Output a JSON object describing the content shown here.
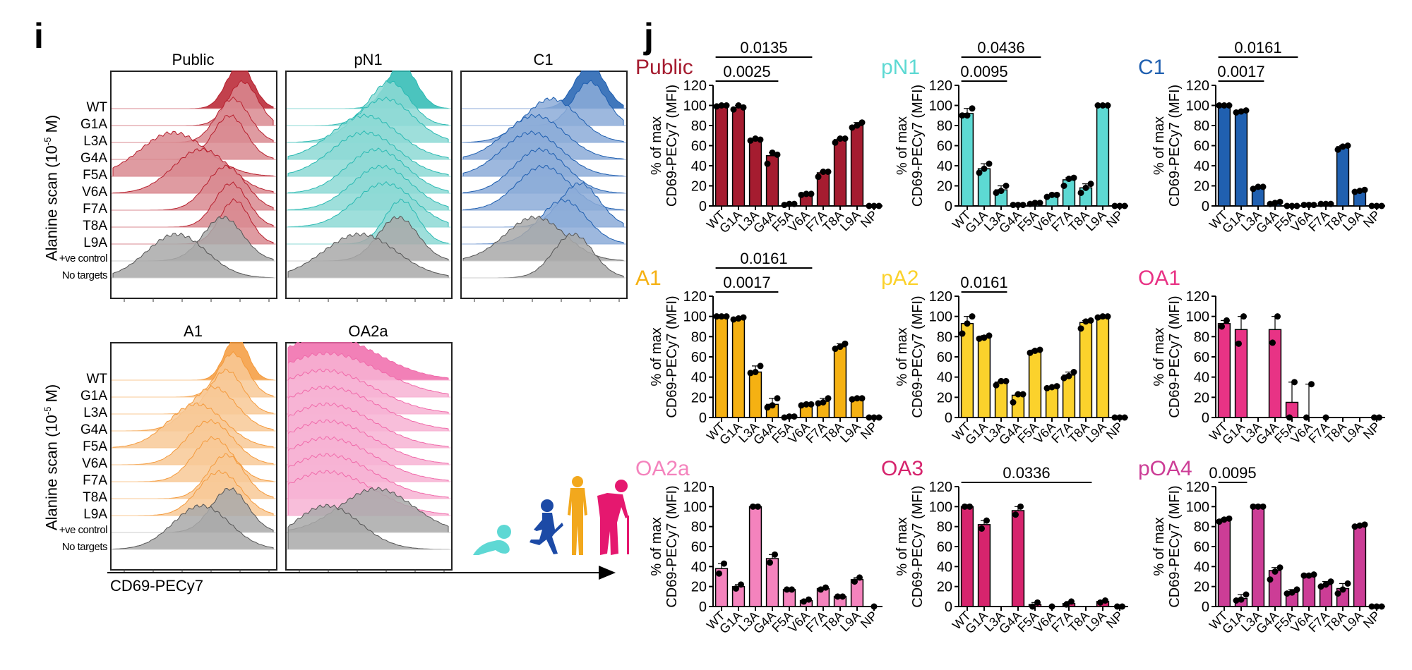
{
  "panel_i": {
    "letter": "i",
    "y_axis_label": "Alanine scan (10",
    "y_axis_label_sup": "-5",
    "y_axis_label_end": " M)",
    "x_axis_label": "CD69-PECy7",
    "row_labels": [
      "WT",
      "G1A",
      "L3A",
      "G4A",
      "F5A",
      "V6A",
      "F7A",
      "T8A",
      "L9A",
      "+ve control",
      "No targets"
    ],
    "panels": [
      {
        "title": "Public",
        "color": "#b7202e",
        "light": "#d98a90",
        "peaks": [
          0.78,
          0.8,
          0.74,
          0.72,
          0.38,
          0.55,
          0.7,
          0.73,
          0.75,
          0.68,
          0.4
        ],
        "widths": [
          0.08,
          0.09,
          0.1,
          0.1,
          0.2,
          0.17,
          0.12,
          0.1,
          0.09,
          0.12,
          0.18
        ]
      },
      {
        "title": "pN1",
        "color": "#2bbab3",
        "light": "#8dd9d5",
        "peaks": [
          0.7,
          0.63,
          0.6,
          0.48,
          0.48,
          0.55,
          0.58,
          0.6,
          0.7,
          0.68,
          0.45
        ],
        "widths": [
          0.09,
          0.12,
          0.17,
          0.2,
          0.2,
          0.18,
          0.18,
          0.18,
          0.1,
          0.12,
          0.22
        ]
      },
      {
        "title": "C1",
        "color": "#1f5fb0",
        "light": "#8cabd8",
        "peaks": [
          0.78,
          0.78,
          0.55,
          0.45,
          0.43,
          0.48,
          0.5,
          0.72,
          0.62,
          0.45,
          0.68
        ],
        "widths": [
          0.09,
          0.1,
          0.16,
          0.18,
          0.18,
          0.16,
          0.16,
          0.12,
          0.14,
          0.18,
          0.12
        ]
      },
      {
        "title": "A1",
        "color": "#f49a3c",
        "light": "#f8c996",
        "peaks": [
          0.76,
          0.74,
          0.7,
          0.62,
          0.52,
          0.6,
          0.62,
          0.7,
          0.66,
          0.72,
          0.55
        ],
        "widths": [
          0.07,
          0.09,
          0.1,
          0.14,
          0.17,
          0.14,
          0.12,
          0.11,
          0.13,
          0.11,
          0.17
        ]
      },
      {
        "title": "OA2a",
        "color": "#f06aaa",
        "light": "#f7b3d3",
        "peaks": [
          0.25,
          0.25,
          0.23,
          0.25,
          0.25,
          0.25,
          0.25,
          0.25,
          0.25,
          0.55,
          0.25
        ],
        "widths": [
          0.3,
          0.32,
          0.3,
          0.3,
          0.28,
          0.28,
          0.28,
          0.28,
          0.28,
          0.22,
          0.2
        ]
      }
    ]
  },
  "panel_j": {
    "letter": "j",
    "ylabel_line1": "% of max",
    "ylabel_line2": "CD69-PECy7 (MFI)"
  },
  "chart_data": [
    {
      "type": "bar",
      "title": "Public",
      "color": "#a51c30",
      "categories": [
        "WT",
        "G1A",
        "L3A",
        "G4A",
        "F5A",
        "V6A",
        "F7A",
        "T8A",
        "L9A",
        "NP"
      ],
      "values": [
        100,
        98,
        66,
        50,
        2,
        12,
        33,
        66,
        80,
        0
      ],
      "points": [
        [
          99,
          100,
          100
        ],
        [
          96,
          100,
          98
        ],
        [
          65,
          67,
          66
        ],
        [
          42,
          53,
          51
        ],
        [
          1,
          2,
          2
        ],
        [
          11,
          12,
          12
        ],
        [
          29,
          34,
          34
        ],
        [
          63,
          67,
          67
        ],
        [
          78,
          80,
          83
        ],
        [
          0,
          0,
          0
        ]
      ],
      "ylabel": "% of max CD69-PECy7 (MFI)",
      "ylim": [
        0,
        120
      ],
      "yticks": [
        0,
        20,
        40,
        60,
        80,
        100,
        120
      ],
      "significance": [
        {
          "label": "0.0135",
          "from": "WT",
          "to": "V6A"
        },
        {
          "label": "0.0025",
          "from": "WT",
          "to": "G4A"
        }
      ]
    },
    {
      "type": "bar",
      "title": "pN1",
      "color": "#5dd9d3",
      "categories": [
        "WT",
        "G1A",
        "L3A",
        "G4A",
        "F5A",
        "V6A",
        "F7A",
        "T8A",
        "L9A",
        "NP"
      ],
      "values": [
        92,
        37,
        16,
        1,
        3,
        10,
        26,
        18,
        100,
        0
      ],
      "points": [
        [
          90,
          90,
          97
        ],
        [
          33,
          37,
          42
        ],
        [
          13,
          15,
          20
        ],
        [
          1,
          1,
          1
        ],
        [
          2,
          3,
          3
        ],
        [
          9,
          11,
          11
        ],
        [
          20,
          27,
          28
        ],
        [
          13,
          18,
          22
        ],
        [
          100,
          100,
          100
        ],
        [
          0,
          0,
          0
        ]
      ],
      "ylabel": "% of max CD69-PECy7 (MFI)",
      "ylim": [
        0,
        120
      ],
      "yticks": [
        0,
        20,
        40,
        60,
        80,
        100,
        120
      ],
      "significance": [
        {
          "label": "0.0436",
          "from": "WT",
          "to": "F5A"
        },
        {
          "label": "0.0095",
          "from": "WT",
          "to": "L3A"
        }
      ]
    },
    {
      "type": "bar",
      "title": "C1",
      "color": "#2060b0",
      "categories": [
        "WT",
        "G1A",
        "L3A",
        "G4A",
        "F5A",
        "V6A",
        "F7A",
        "T8A",
        "L9A",
        "NP"
      ],
      "values": [
        100,
        94,
        18,
        3,
        0,
        1,
        2,
        59,
        15,
        0
      ],
      "points": [
        [
          100,
          100,
          100
        ],
        [
          93,
          94,
          95
        ],
        [
          17,
          19,
          19
        ],
        [
          2,
          3,
          4
        ],
        [
          0,
          0,
          0
        ],
        [
          1,
          1,
          1
        ],
        [
          2,
          2,
          2
        ],
        [
          56,
          59,
          60
        ],
        [
          14,
          15,
          16
        ],
        [
          0,
          0,
          0
        ]
      ],
      "ylabel": "% of max CD69-PECy7 (MFI)",
      "ylim": [
        0,
        120
      ],
      "yticks": [
        0,
        20,
        40,
        60,
        80,
        100,
        120
      ],
      "significance": [
        {
          "label": "0.0161",
          "from": "WT",
          "to": "F5A"
        },
        {
          "label": "0.0017",
          "from": "WT",
          "to": "L3A"
        }
      ]
    },
    {
      "type": "bar",
      "title": "A1",
      "color": "#f5b112",
      "categories": [
        "WT",
        "G1A",
        "L3A",
        "G4A",
        "F5A",
        "V6A",
        "F7A",
        "T8A",
        "L9A",
        "NP"
      ],
      "values": [
        100,
        98,
        45,
        13,
        1,
        13,
        16,
        70,
        19,
        0
      ],
      "points": [
        [
          100,
          100,
          100
        ],
        [
          97,
          98,
          99
        ],
        [
          44,
          45,
          51
        ],
        [
          10,
          12,
          19
        ],
        [
          0,
          1,
          1
        ],
        [
          12,
          13,
          13
        ],
        [
          14,
          15,
          19
        ],
        [
          68,
          70,
          73
        ],
        [
          18,
          19,
          19
        ],
        [
          0,
          0,
          0
        ]
      ],
      "ylabel": "% of max CD69-PECy7 (MFI)",
      "ylim": [
        0,
        120
      ],
      "yticks": [
        0,
        20,
        40,
        60,
        80,
        100,
        120
      ],
      "significance": [
        {
          "label": "0.0161",
          "from": "WT",
          "to": "V6A"
        },
        {
          "label": "0.0017",
          "from": "WT",
          "to": "G4A"
        }
      ]
    },
    {
      "type": "bar",
      "title": "pA2",
      "color": "#fbd22c",
      "categories": [
        "WT",
        "G1A",
        "L3A",
        "G4A",
        "F5A",
        "V6A",
        "F7A",
        "T8A",
        "L9A",
        "NP"
      ],
      "values": [
        93,
        79,
        35,
        22,
        65,
        30,
        42,
        94,
        100,
        0
      ],
      "points": [
        [
          83,
          93,
          100
        ],
        [
          78,
          79,
          81
        ],
        [
          32,
          36,
          36
        ],
        [
          15,
          23,
          23
        ],
        [
          64,
          66,
          67
        ],
        [
          29,
          30,
          31
        ],
        [
          39,
          41,
          45
        ],
        [
          88,
          95,
          96
        ],
        [
          99,
          100,
          100
        ],
        [
          0,
          0,
          0
        ]
      ],
      "ylabel": "% of max CD69-PECy7 (MFI)",
      "ylim": [
        0,
        120
      ],
      "yticks": [
        0,
        20,
        40,
        60,
        80,
        100,
        120
      ],
      "significance": [
        {
          "label": "0.0161",
          "from": "WT",
          "to": "L3A"
        }
      ]
    },
    {
      "type": "bar",
      "title": "OA1",
      "color": "#e83385",
      "categories": [
        "WT",
        "G1A",
        "L3A",
        "G4A",
        "F5A",
        "V6A",
        "F7A",
        "T8A",
        "L9A",
        "NP"
      ],
      "values": [
        93,
        87,
        null,
        87,
        15,
        0,
        0,
        null,
        null,
        0
      ],
      "points": [
        [
          90,
          96
        ],
        [
          73,
          100
        ],
        [],
        [
          74,
          100
        ],
        [
          0,
          35
        ],
        [
          0,
          33
        ],
        [
          0
        ],
        [],
        [],
        [
          0,
          0
        ]
      ],
      "ylabel": "% of max CD69-PECy7 (MFI)",
      "ylim": [
        0,
        120
      ],
      "yticks": [
        0,
        20,
        40,
        60,
        80,
        100,
        120
      ],
      "significance": []
    },
    {
      "type": "bar",
      "title": "OA2a",
      "color": "#f483bd",
      "categories": [
        "WT",
        "G1A",
        "L3A",
        "G4A",
        "F5A",
        "V6A",
        "F7A",
        "T8A",
        "L9A",
        "NP"
      ],
      "values": [
        38,
        20,
        100,
        48,
        17,
        6,
        18,
        10,
        27,
        0
      ],
      "points": [
        [
          33,
          43
        ],
        [
          18,
          22
        ],
        [
          100,
          100
        ],
        [
          44,
          52
        ],
        [
          17,
          17
        ],
        [
          5,
          7
        ],
        [
          17,
          19
        ],
        [
          10,
          10
        ],
        [
          25,
          29
        ],
        [
          0
        ]
      ],
      "ylabel": "% of max CD69-PECy7 (MFI)",
      "ylim": [
        0,
        120
      ],
      "yticks": [
        0,
        20,
        40,
        60,
        80,
        100,
        120
      ],
      "significance": []
    },
    {
      "type": "bar",
      "title": "OA3",
      "color": "#d6246d",
      "categories": [
        "WT",
        "G1A",
        "L3A",
        "G4A",
        "F5A",
        "V6A",
        "F7A",
        "T8A",
        "L9A",
        "NP"
      ],
      "values": [
        100,
        82,
        null,
        96,
        2,
        0,
        3,
        null,
        5,
        0
      ],
      "points": [
        [
          100,
          100
        ],
        [
          78,
          86
        ],
        [],
        [
          92,
          100
        ],
        [
          0,
          4
        ],
        [
          0
        ],
        [
          2,
          5
        ],
        [],
        [
          4,
          6
        ],
        [
          0,
          0
        ]
      ],
      "ylabel": "% of max CD69-PECy7 (MFI)",
      "ylim": [
        0,
        120
      ],
      "yticks": [
        0,
        20,
        40,
        60,
        80,
        100,
        120
      ],
      "significance": [
        {
          "label": "0.0336",
          "from": "WT",
          "to": "T8A"
        }
      ]
    },
    {
      "type": "bar",
      "title": "pOA4",
      "color": "#cc3d96",
      "categories": [
        "WT",
        "G1A",
        "L3A",
        "G4A",
        "F5A",
        "V6A",
        "F7A",
        "T8A",
        "L9A",
        "NP"
      ],
      "values": [
        87,
        8,
        100,
        36,
        14,
        31,
        22,
        18,
        81,
        0
      ],
      "points": [
        [
          85,
          87,
          88
        ],
        [
          6,
          7,
          12
        ],
        [
          100,
          100,
          100
        ],
        [
          27,
          35,
          39
        ],
        [
          13,
          14,
          17
        ],
        [
          31,
          31,
          32
        ],
        [
          20,
          22,
          25
        ],
        [
          13,
          17,
          23
        ],
        [
          80,
          81,
          82
        ],
        [
          0,
          0,
          0
        ]
      ],
      "ylabel": "% of max CD69-PECy7 (MFI)",
      "ylim": [
        0,
        120
      ],
      "yticks": [
        0,
        20,
        40,
        60,
        80,
        100,
        120
      ],
      "significance": [
        {
          "label": "0.0095",
          "from": "WT",
          "to": "G1A"
        }
      ]
    }
  ],
  "age_graphic": {
    "figures": [
      {
        "name": "baby",
        "color": "#5ed8d4"
      },
      {
        "name": "child",
        "color": "#1c4aa6"
      },
      {
        "name": "adult",
        "color": "#f2a81d"
      },
      {
        "name": "elderly",
        "color": "#e5186f"
      }
    ]
  }
}
